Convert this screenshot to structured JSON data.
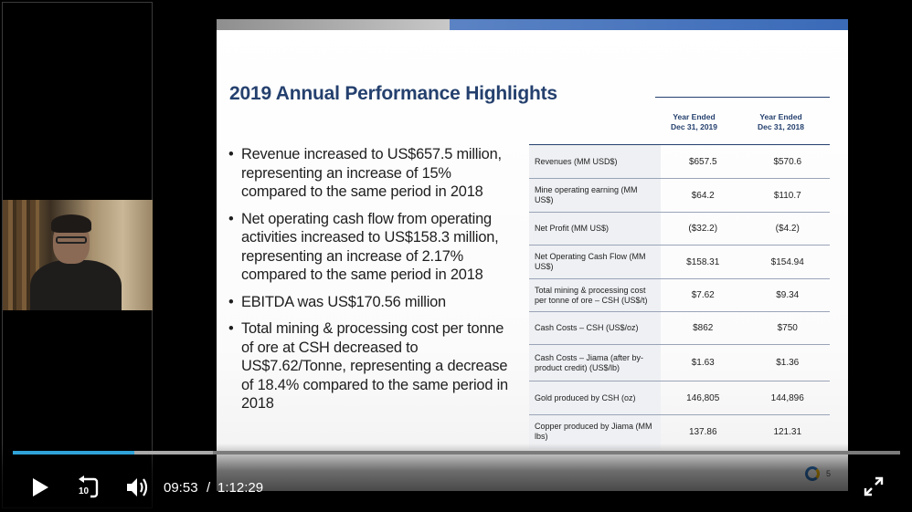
{
  "slide": {
    "title": "2019 Annual Performance Highlights",
    "bullets": [
      "Revenue increased to US$657.5 million, representing an increase of 15% compared to the same period in 2018",
      "Net operating cash flow from operating activities increased to US$158.3 million, representing an increase of 2.17% compared to the same period in 2018",
      "EBITDA was US$170.56 million",
      "Total mining & processing cost per tonne of ore at CSH decreased to US$7.62/Tonne, representing a decrease of 18.4% compared to the same period in 2018"
    ],
    "table": {
      "headers": [
        {
          "line1": "Year Ended",
          "line2": "Dec 31, 2019"
        },
        {
          "line1": "Year Ended",
          "line2": "Dec 31, 2018"
        }
      ],
      "rows": [
        {
          "label": "Revenues (MM USD$)",
          "v2019": "$657.5",
          "v2018": "$570.6"
        },
        {
          "label": "Mine operating earning (MM US$)",
          "v2019": "$64.2",
          "v2018": "$110.7"
        },
        {
          "label": "Net Profit  (MM US$)",
          "v2019": "($32.2)",
          "v2018": "($4.2)"
        },
        {
          "label": "Net Operating Cash Flow (MM US$)",
          "v2019": "$158.31",
          "v2018": "$154.94"
        },
        {
          "label": "Total mining & processing cost per tonne of ore  – CSH (US$/t)",
          "v2019": "$7.62",
          "v2018": "$9.34"
        },
        {
          "label": "Cash Costs – CSH (US$/oz)",
          "v2019": "$862",
          "v2018": "$750"
        },
        {
          "label": "Cash Costs – Jiama (after by-product credit) (US$/lb)",
          "v2019": "$1.63",
          "v2018": "$1.36"
        },
        {
          "label": "Gold produced by CSH (oz)",
          "v2019": "146,805",
          "v2018": "144,896"
        },
        {
          "label": "Copper produced by Jiama (MM lbs)",
          "v2019": "137.86",
          "v2018": "121.31"
        }
      ]
    },
    "page_number": "5"
  },
  "player": {
    "current_time": "09:53",
    "separator": "/",
    "duration": "1:12:29",
    "rewind_seconds": "10",
    "progress_played_fraction": 0.137,
    "progress_buffered_fraction": 0.226,
    "accent_color": "#2fa3d8",
    "icons": {
      "play": "play-icon",
      "rewind": "rewind-10-icon",
      "volume": "volume-icon",
      "fullscreen": "fullscreen-icon"
    }
  }
}
